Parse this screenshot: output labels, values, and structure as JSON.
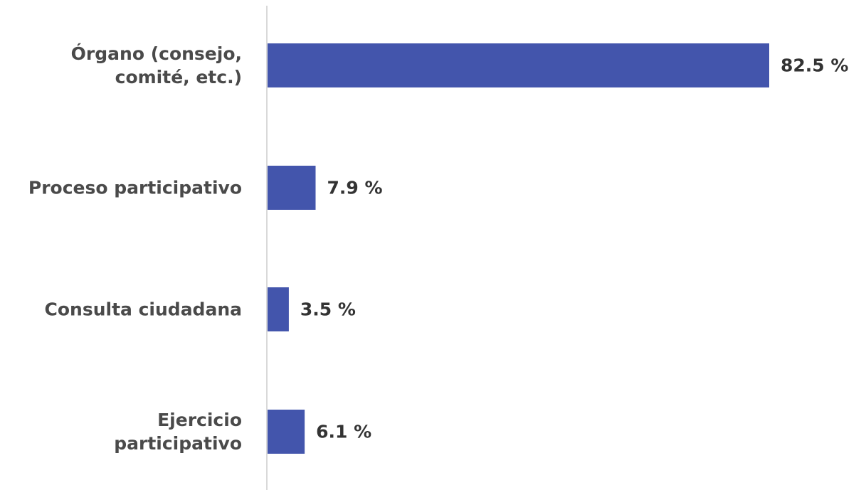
{
  "chart_data": {
    "type": "bar",
    "orientation": "horizontal",
    "categories": [
      [
        "Órgano (consejo,",
        "comité, etc.)"
      ],
      [
        "Proceso participativo"
      ],
      [
        "Consulta ciudadana"
      ],
      [
        "Ejercicio",
        "participativo"
      ]
    ],
    "values": [
      82.5,
      7.9,
      3.5,
      6.1
    ],
    "value_labels": [
      "82.5 %",
      "7.9 %",
      "3.5 %",
      "6.1 %"
    ],
    "xlim": [
      0,
      100
    ],
    "grid": false,
    "legend": "none",
    "colors": {
      "bar": "#4355AC",
      "axis": "#d9d9d9",
      "category_text": "#4a4a4a",
      "value_text": "#333333"
    }
  }
}
